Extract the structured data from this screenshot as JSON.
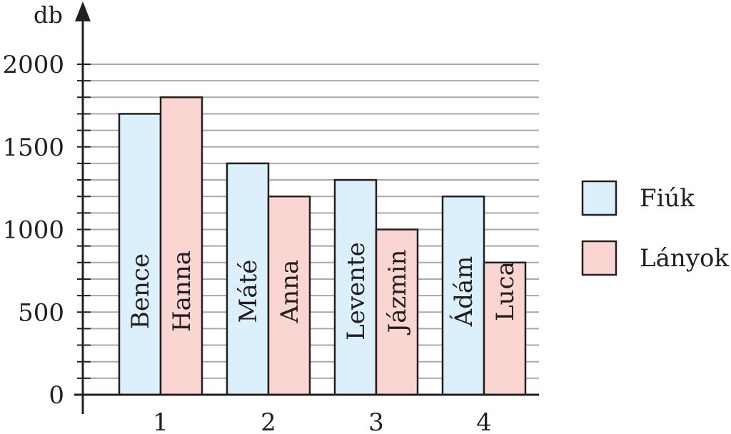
{
  "chart_data": {
    "type": "bar",
    "categories": [
      "1",
      "2",
      "3",
      "4"
    ],
    "ylabel": "db",
    "ylim": [
      0,
      2000
    ],
    "yticks": [
      "0",
      "500",
      "1000",
      "1500",
      "2000"
    ],
    "grid": true,
    "legend_position": "right",
    "series": [
      {
        "name": "Fiúk",
        "color": "#dcf0fb",
        "values": [
          1700,
          1400,
          1300,
          1200
        ],
        "labels": [
          "Bence",
          "Máté",
          "Levente",
          "Ádám"
        ]
      },
      {
        "name": "Lányok",
        "color": "#fbd5d1",
        "values": [
          1800,
          1200,
          1000,
          800
        ],
        "labels": [
          "Hanna",
          "Anna",
          "Jázmin",
          "Luca"
        ]
      }
    ]
  }
}
